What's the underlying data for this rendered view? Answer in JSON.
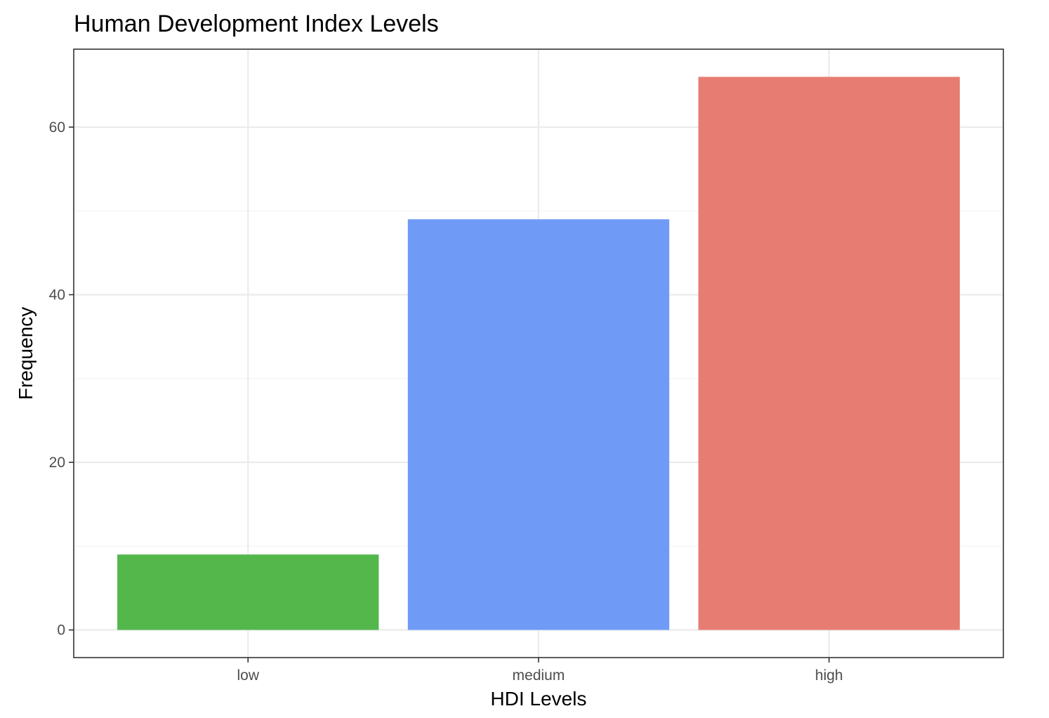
{
  "chart_data": {
    "type": "bar",
    "title": "Human Development Index Levels",
    "xlabel": "HDI Levels",
    "ylabel": "Frequency",
    "categories": [
      "low",
      "medium",
      "high"
    ],
    "values": [
      9,
      49,
      66
    ],
    "colors": [
      "#53b74c",
      "#6f9bf7",
      "#e77d72"
    ],
    "ylim": [
      -3.3,
      69.3
    ],
    "yticks": [
      0,
      20,
      40,
      60
    ],
    "yminor": [
      10,
      30,
      50
    ],
    "grid": true,
    "legend": "none"
  }
}
